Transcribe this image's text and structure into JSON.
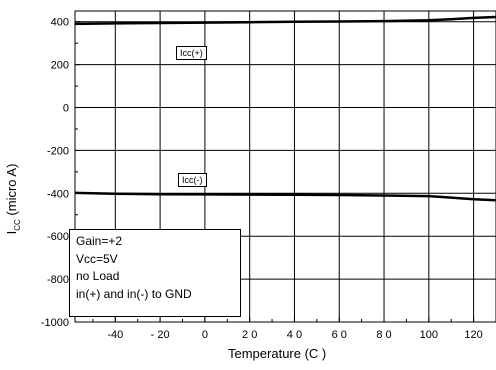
{
  "chart_data": {
    "type": "line",
    "xlabel": "Temperature (C )",
    "ylabel_main": "I",
    "ylabel_sub": "CC",
    "ylabel_rest": "(micro A)",
    "xlim": [
      -58,
      130
    ],
    "ylim": [
      -1000,
      450
    ],
    "x_ticks": [
      {
        "value": -40,
        "label": "-40"
      },
      {
        "value": -20,
        "label": "- 20"
      },
      {
        "value": 0,
        "label": "0"
      },
      {
        "value": 20,
        "label": "2 0"
      },
      {
        "value": 40,
        "label": "4 0"
      },
      {
        "value": 60,
        "label": "6 0"
      },
      {
        "value": 80,
        "label": "8 0"
      },
      {
        "value": 100,
        "label": "100"
      },
      {
        "value": 120,
        "label": "120"
      }
    ],
    "y_ticks": [
      {
        "value": 400,
        "label": "400"
      },
      {
        "value": 200,
        "label": "200"
      },
      {
        "value": 0,
        "label": "0"
      },
      {
        "value": -200,
        "label": "-200"
      },
      {
        "value": -400,
        "label": "-400"
      },
      {
        "value": -600,
        "label": "-600"
      },
      {
        "value": -800,
        "label": "-800"
      },
      {
        "value": -1000,
        "label": "-1000"
      }
    ],
    "grid": true,
    "series": [
      {
        "name": "Icc(+)",
        "x": [
          -58,
          -40,
          -20,
          0,
          20,
          40,
          60,
          80,
          100,
          110,
          120,
          130
        ],
        "y": [
          390,
          392,
          394,
          396,
          398,
          400,
          401,
          403,
          407,
          412,
          418,
          422
        ]
      },
      {
        "name": "Icc(-)",
        "x": [
          -58,
          -40,
          -20,
          0,
          20,
          40,
          60,
          80,
          100,
          110,
          120,
          130
        ],
        "y": [
          -398,
          -402,
          -404,
          -405,
          -406,
          -407,
          -408,
          -410,
          -413,
          -420,
          -428,
          -432
        ]
      }
    ],
    "annotations": [
      "Gain=+2",
      "Vcc=5V",
      "no Load",
      "in(+) and in(-) to GND"
    ],
    "line_color": "#000000"
  }
}
